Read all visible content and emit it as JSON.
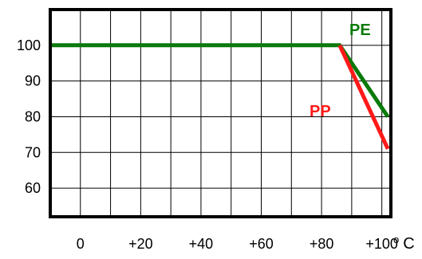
{
  "chart_data": {
    "type": "line",
    "xlim": [
      -10,
      103
    ],
    "ylim": [
      52,
      110
    ],
    "grid": true,
    "x_ticks": [
      {
        "value": 0,
        "label": "0"
      },
      {
        "value": 20,
        "label": "+20"
      },
      {
        "value": 40,
        "label": "+40"
      },
      {
        "value": 60,
        "label": "+60"
      },
      {
        "value": 80,
        "label": "+80"
      },
      {
        "value": 100,
        "label": "+100"
      }
    ],
    "x_unit": {
      "prefix": "o",
      "main": "C"
    },
    "y_ticks": [
      {
        "value": 60,
        "label": "60"
      },
      {
        "value": 70,
        "label": "70"
      },
      {
        "value": 80,
        "label": "80"
      },
      {
        "value": 90,
        "label": "90"
      },
      {
        "value": 100,
        "label": "100"
      }
    ],
    "series": [
      {
        "name": "PE",
        "color": "#0a7a0a",
        "points": [
          [
            -10,
            100
          ],
          [
            86,
            100
          ],
          [
            102,
            80
          ]
        ]
      },
      {
        "name": "PP",
        "color": "#ff1a1a",
        "points": [
          [
            86,
            100
          ],
          [
            102,
            71
          ]
        ]
      }
    ]
  }
}
